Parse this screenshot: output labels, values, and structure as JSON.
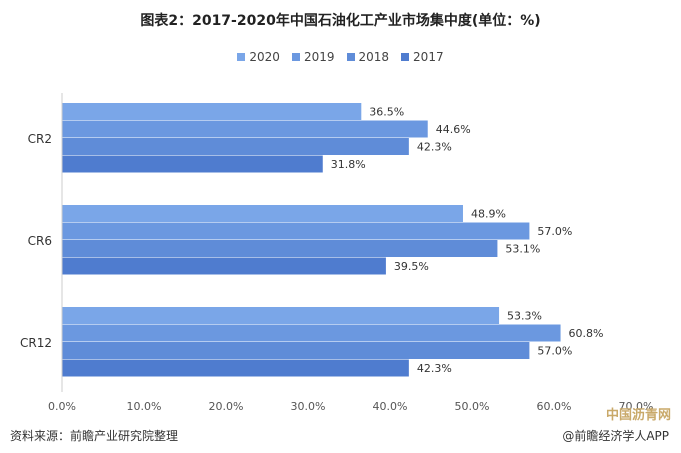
{
  "chart_data": {
    "type": "bar",
    "orientation": "horizontal",
    "title": "图表2：2017-2020年中国石油化工产业市场集中度(单位：%)",
    "categories": [
      "CR2",
      "CR6",
      "CR12"
    ],
    "series": [
      {
        "name": "2020",
        "values": [
          36.5,
          48.9,
          53.3
        ],
        "labels": [
          "36.5%",
          "48.9%",
          "53.3%"
        ],
        "color": "#7aa6e8"
      },
      {
        "name": "2019",
        "values": [
          44.6,
          57.0,
          60.8
        ],
        "labels": [
          "44.6%",
          "57.0%",
          "60.8%"
        ],
        "color": "#6b98e0"
      },
      {
        "name": "2018",
        "values": [
          42.3,
          53.1,
          57.0
        ],
        "labels": [
          "42.3%",
          "53.1%",
          "57.0%"
        ],
        "color": "#5f8cd8"
      },
      {
        "name": "2017",
        "values": [
          31.8,
          39.5,
          42.3
        ],
        "labels": [
          "31.8%",
          "39.5%",
          "42.3%"
        ],
        "color": "#4f7ccf"
      }
    ],
    "xlim": [
      0,
      70
    ],
    "x_ticks": [
      "0.0%",
      "10.0%",
      "20.0%",
      "30.0%",
      "40.0%",
      "50.0%",
      "60.0%",
      "70.0%"
    ],
    "legend_position": "top-center",
    "grid": false
  },
  "footer": {
    "source": "资料来源：前瞻产业研究院整理",
    "app": "@前瞻经济学人APP",
    "logo_text": "中国沥青网"
  }
}
